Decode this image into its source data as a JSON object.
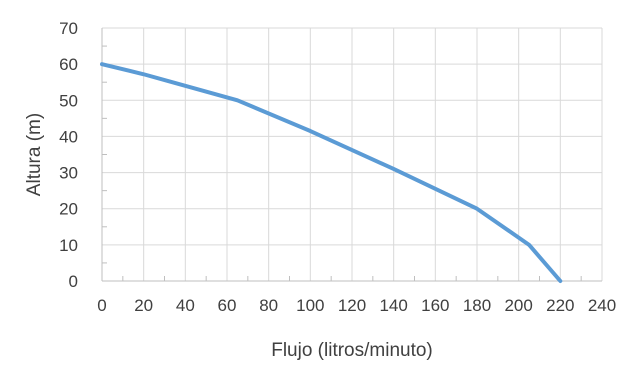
{
  "chart_data": {
    "type": "line",
    "title": "",
    "xlabel": "Flujo (litros/minuto)",
    "ylabel": "Altura (m)",
    "xlim": [
      0,
      240
    ],
    "ylim": [
      0,
      70
    ],
    "x_ticks": [
      0,
      20,
      40,
      60,
      80,
      100,
      120,
      140,
      160,
      180,
      200,
      220,
      240
    ],
    "y_ticks": [
      0,
      10,
      20,
      30,
      40,
      50,
      60,
      70
    ],
    "grid": true,
    "legend": "none",
    "series": [
      {
        "color": "#5b9bd5",
        "x": [
          0,
          20,
          35,
          65,
          100,
          140,
          180,
          205,
          220
        ],
        "y": [
          60,
          57.2,
          54.8,
          50,
          41.5,
          31,
          20,
          10,
          0
        ]
      }
    ]
  }
}
